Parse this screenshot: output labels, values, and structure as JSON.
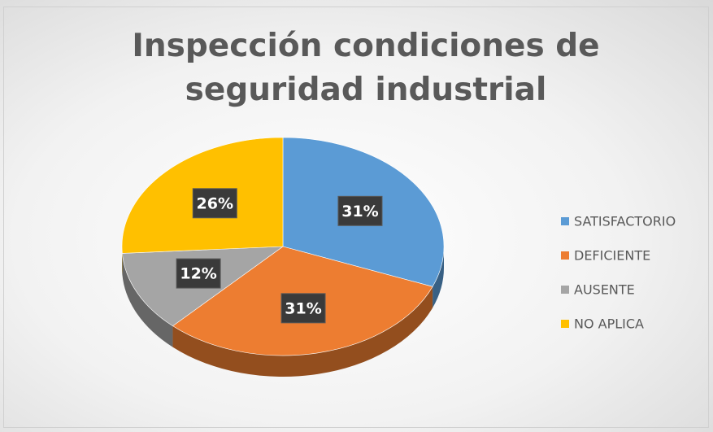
{
  "chart_data": {
    "type": "pie",
    "title": "Inspección condiciones de seguridad industrial",
    "categories": [
      "SATISFACTORIO",
      "DEFICIENTE",
      "AUSENTE",
      "NO APLICA"
    ],
    "values": [
      31,
      31,
      12,
      26
    ],
    "value_labels": [
      "31%",
      "31%",
      "12%",
      "26%"
    ],
    "colors": [
      "#5b9bd5",
      "#ed7d31",
      "#a5a5a5",
      "#ffc000"
    ],
    "legend": "right"
  }
}
